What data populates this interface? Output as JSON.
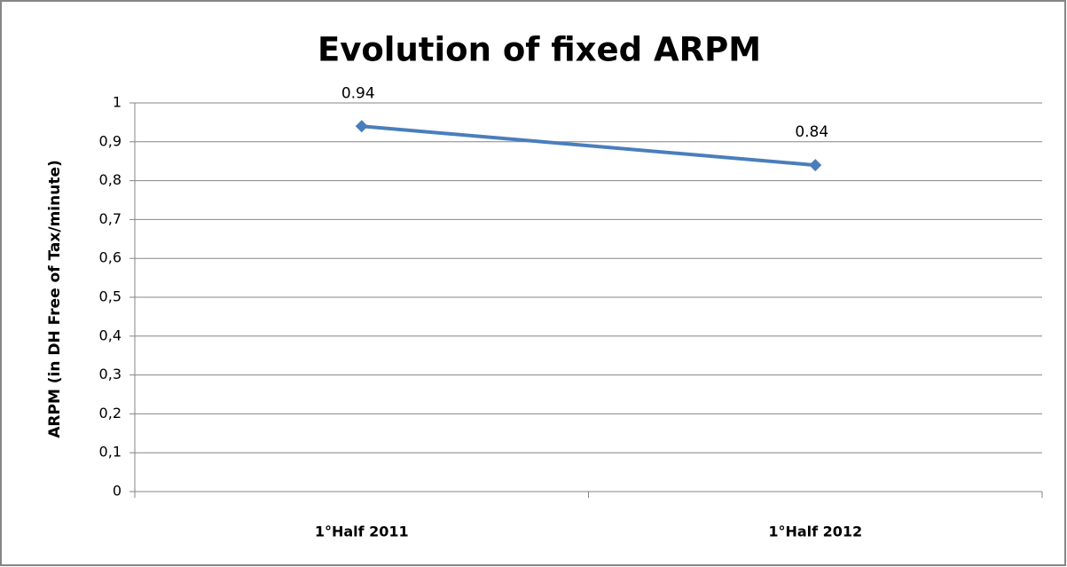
{
  "chart_data": {
    "type": "line",
    "title": "Evolution of fixed ARPM",
    "y_label": "ARPM (in DH Free of Tax/minute)",
    "categories": [
      "1°Half 2011",
      "1°Half 2012"
    ],
    "series": [
      {
        "name": "ARPM",
        "color": "#4a7ebb",
        "values": [
          0.94,
          0.84
        ]
      }
    ],
    "ylim": [
      0,
      1
    ],
    "yticks": [
      0,
      {
        "value": 0.1,
        "label": "0,1"
      },
      {
        "value": 0.2,
        "label": "0,2"
      },
      {
        "value": 0.3,
        "label": "0,3"
      },
      {
        "value": 0.4,
        "label": "0,4"
      },
      {
        "value": 0.5,
        "label": "0,5"
      },
      {
        "value": 0.6,
        "label": "0,6"
      },
      {
        "value": 0.7,
        "label": "0,7"
      },
      {
        "value": 0.8,
        "label": "0,8"
      },
      {
        "value": 0.9,
        "label": "0,9"
      },
      1
    ],
    "grid": true
  }
}
